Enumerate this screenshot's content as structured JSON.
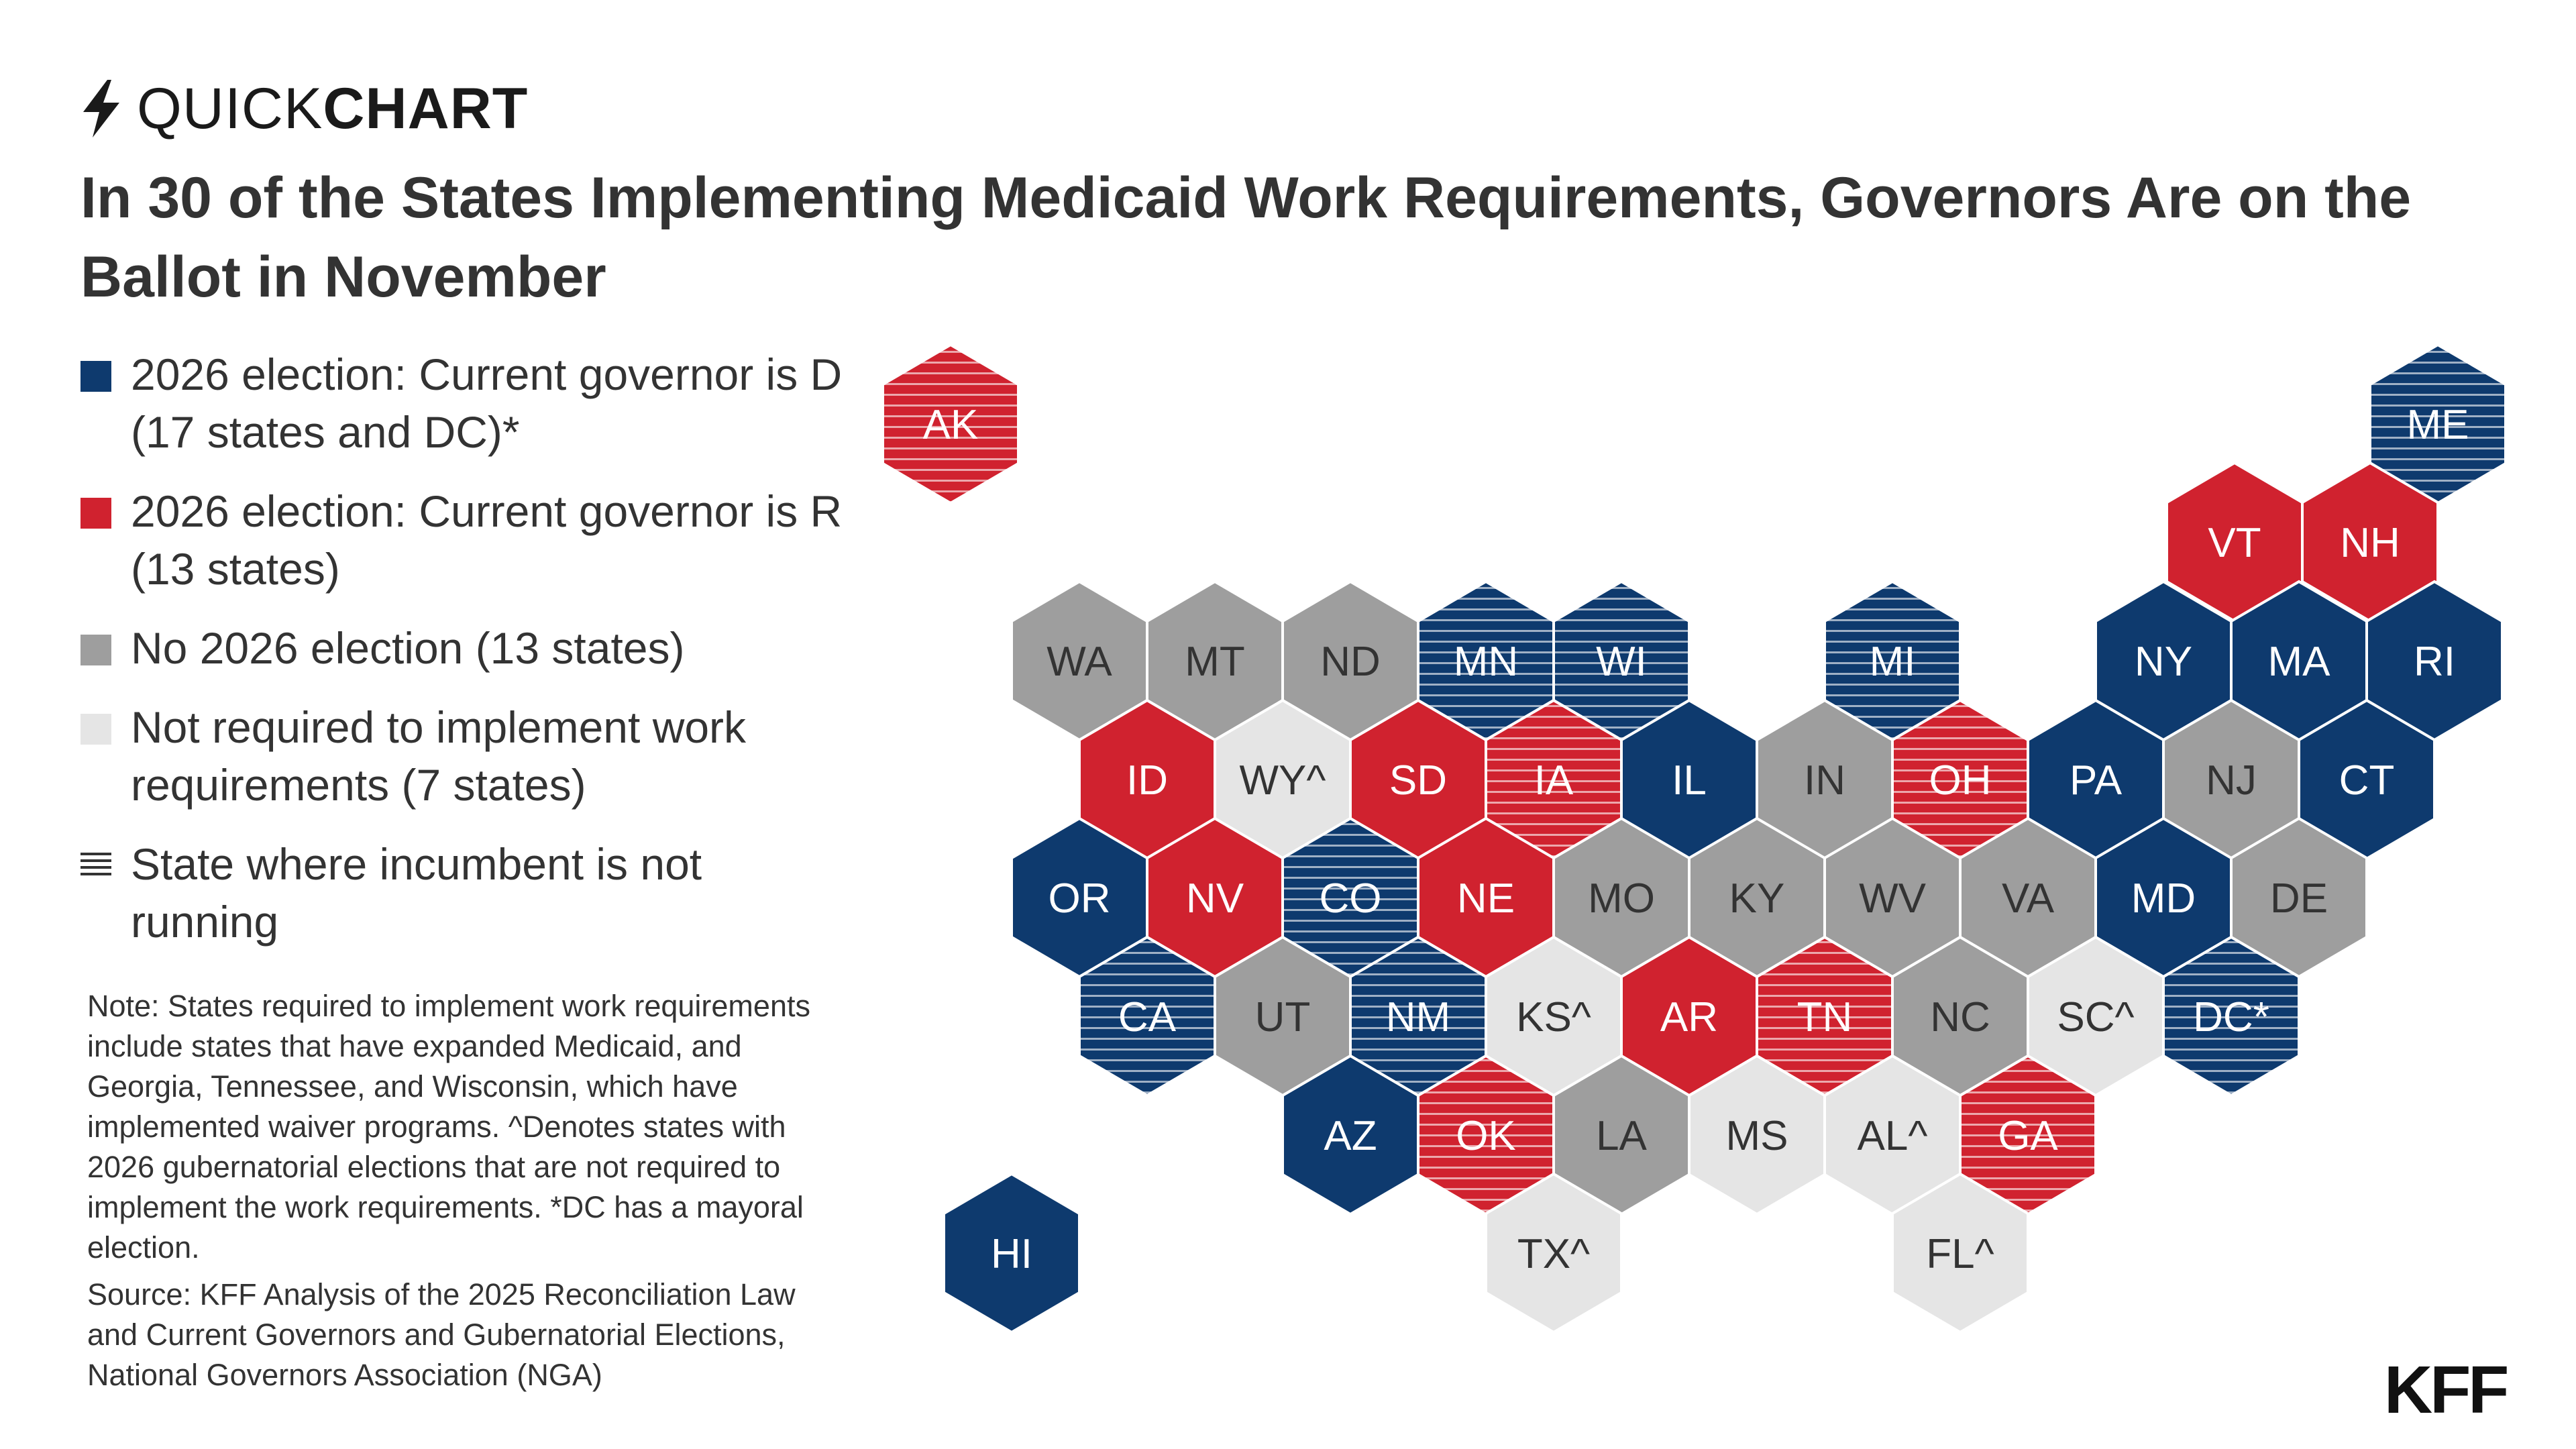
{
  "header": {
    "kicker_light": "QUICK",
    "kicker_bold": "CHART",
    "title": "In 30 of the States Implementing Medicaid Work Requirements, Governors Are on the Ballot in November"
  },
  "icons": {
    "header": "lightning-bolt-icon",
    "not_running": "horizontal-lines-icon"
  },
  "colors": {
    "dem": "#0e3a6e",
    "rep": "#d0222f",
    "no_election": "#9e9e9e",
    "not_required": "#e5e5e5",
    "label_dark": "#333333",
    "label_light": "#ffffff"
  },
  "legend": [
    {
      "key": "dem",
      "label": "2026 election: Current governor is D (17 states and DC)*"
    },
    {
      "key": "rep",
      "label": "2026 election: Current governor is R (13 states)"
    },
    {
      "key": "no_election",
      "label": "No 2026 election (13 states)"
    },
    {
      "key": "not_required",
      "label": "Not required to implement work requirements (7 states)"
    },
    {
      "key": "not_running",
      "label": "State where incumbent is not running"
    }
  ],
  "notes": {
    "note": "Note: States required to implement work requirements include states that have expanded Medicaid, and Georgia, Tennessee, and Wisconsin, which have implemented waiver programs. ^Denotes states with 2026 gubernatorial elections that are not required to implement the work requirements. *DC has a mayoral election.",
    "source": "Source: KFF Analysis of the 2025 Reconciliation Law and Current Governors and Gubernatorial Elections, National Governors Association (NGA)"
  },
  "logo": "KFF",
  "states": [
    {
      "label": "AK",
      "category": "rep",
      "not_running": true
    },
    {
      "label": "ME",
      "category": "dem",
      "not_running": true
    },
    {
      "label": "VT",
      "category": "rep",
      "not_running": false
    },
    {
      "label": "NH",
      "category": "rep",
      "not_running": false
    },
    {
      "label": "WA",
      "category": "no_election",
      "not_running": false
    },
    {
      "label": "MT",
      "category": "no_election",
      "not_running": false
    },
    {
      "label": "ND",
      "category": "no_election",
      "not_running": false
    },
    {
      "label": "MN",
      "category": "dem",
      "not_running": true
    },
    {
      "label": "WI",
      "category": "dem",
      "not_running": true
    },
    {
      "label": "MI",
      "category": "dem",
      "not_running": true
    },
    {
      "label": "NY",
      "category": "dem",
      "not_running": false
    },
    {
      "label": "MA",
      "category": "dem",
      "not_running": false
    },
    {
      "label": "RI",
      "category": "dem",
      "not_running": false
    },
    {
      "label": "ID",
      "category": "rep",
      "not_running": false
    },
    {
      "label": "WY^",
      "category": "not_required",
      "not_running": false
    },
    {
      "label": "SD",
      "category": "rep",
      "not_running": false
    },
    {
      "label": "IA",
      "category": "rep",
      "not_running": true
    },
    {
      "label": "IL",
      "category": "dem",
      "not_running": false
    },
    {
      "label": "IN",
      "category": "no_election",
      "not_running": false
    },
    {
      "label": "OH",
      "category": "rep",
      "not_running": true
    },
    {
      "label": "PA",
      "category": "dem",
      "not_running": false
    },
    {
      "label": "NJ",
      "category": "no_election",
      "not_running": false
    },
    {
      "label": "CT",
      "category": "dem",
      "not_running": false
    },
    {
      "label": "OR",
      "category": "dem",
      "not_running": false
    },
    {
      "label": "NV",
      "category": "rep",
      "not_running": false
    },
    {
      "label": "CO",
      "category": "dem",
      "not_running": true
    },
    {
      "label": "NE",
      "category": "rep",
      "not_running": false
    },
    {
      "label": "MO",
      "category": "no_election",
      "not_running": false
    },
    {
      "label": "KY",
      "category": "no_election",
      "not_running": false
    },
    {
      "label": "WV",
      "category": "no_election",
      "not_running": false
    },
    {
      "label": "VA",
      "category": "no_election",
      "not_running": false
    },
    {
      "label": "MD",
      "category": "dem",
      "not_running": false
    },
    {
      "label": "DE",
      "category": "no_election",
      "not_running": false
    },
    {
      "label": "CA",
      "category": "dem",
      "not_running": true
    },
    {
      "label": "UT",
      "category": "no_election",
      "not_running": false
    },
    {
      "label": "NM",
      "category": "dem",
      "not_running": true
    },
    {
      "label": "KS^",
      "category": "not_required",
      "not_running": false
    },
    {
      "label": "AR",
      "category": "rep",
      "not_running": false
    },
    {
      "label": "TN",
      "category": "rep",
      "not_running": true
    },
    {
      "label": "NC",
      "category": "no_election",
      "not_running": false
    },
    {
      "label": "SC^",
      "category": "not_required",
      "not_running": false
    },
    {
      "label": "DC*",
      "category": "dem",
      "not_running": true
    },
    {
      "label": "AZ",
      "category": "dem",
      "not_running": false
    },
    {
      "label": "OK",
      "category": "rep",
      "not_running": true
    },
    {
      "label": "LA",
      "category": "no_election",
      "not_running": false
    },
    {
      "label": "MS",
      "category": "not_required",
      "not_running": false
    },
    {
      "label": "AL^",
      "category": "not_required",
      "not_running": false
    },
    {
      "label": "GA",
      "category": "rep",
      "not_running": true
    },
    {
      "label": "HI",
      "category": "dem",
      "not_running": false
    },
    {
      "label": "TX^",
      "category": "not_required",
      "not_running": false
    },
    {
      "label": "FL^",
      "category": "not_required",
      "not_running": false
    }
  ]
}
